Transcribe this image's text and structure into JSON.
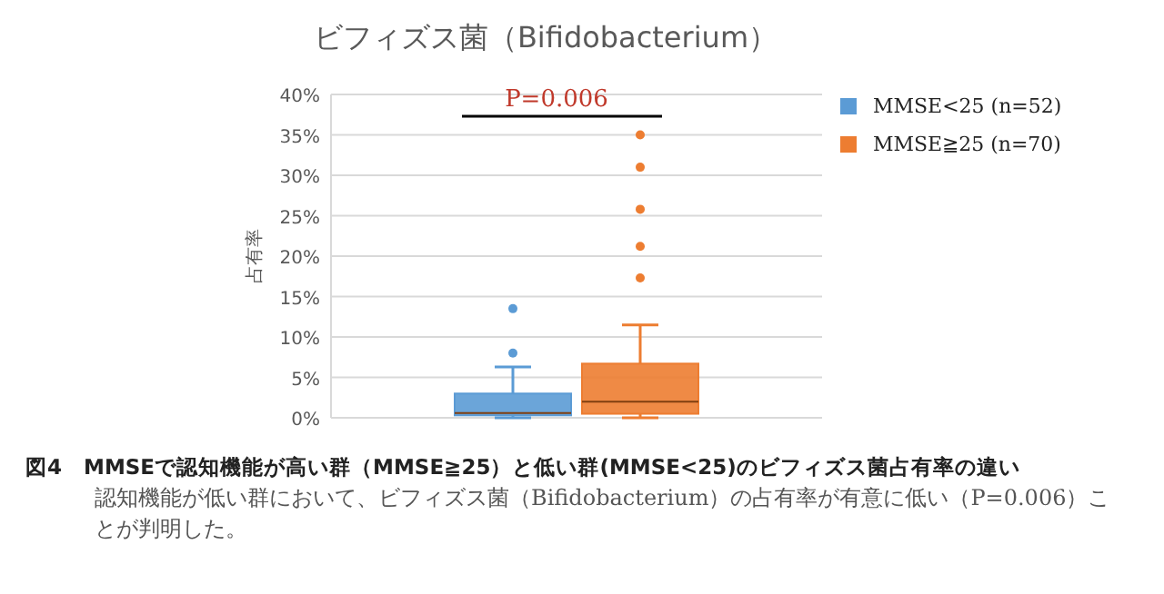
{
  "chart_data": {
    "type": "box",
    "title": "ビフィズス菌（Bifidobacterium）",
    "ylabel": "占有率",
    "categories": [
      null
    ],
    "series": [
      {
        "name": "MMSE<25 (n=52)",
        "color": "#5b9bd5",
        "boxes": [
          {
            "low": 0,
            "q1": 0.3,
            "median": 0.6,
            "q3": 3.0,
            "high": 6.3,
            "outliers": [
              8.0,
              13.5
            ]
          }
        ]
      },
      {
        "name": "MMSE≧25 (n=70)",
        "color": "#ed7d31",
        "boxes": [
          {
            "low": 0,
            "q1": 0.5,
            "median": 2.0,
            "q3": 6.7,
            "high": 11.5,
            "outliers": [
              17.3,
              21.2,
              25.8,
              31.0,
              35.0
            ]
          }
        ]
      }
    ],
    "ylim": [
      0,
      40
    ],
    "yticks": [
      {
        "value": 0,
        "label": "0%"
      },
      {
        "value": 5,
        "label": "5%"
      },
      {
        "value": 10,
        "label": "10%"
      },
      {
        "value": 15,
        "label": "15%"
      },
      {
        "value": 20,
        "label": "20%"
      },
      {
        "value": 25,
        "label": "25%"
      },
      {
        "value": 30,
        "label": "30%"
      },
      {
        "value": 35,
        "label": "35%"
      },
      {
        "value": 40,
        "label": "40%"
      }
    ],
    "grid": "y",
    "legend": "right",
    "annotations": [
      "P=0.006",
      "図4　MMSEで認知機能が高い群（MMSE≧25）と低い群(MMSE<25)のビフィズス菌占有率の違い",
      "認知機能が低い群において、ビフィズス菌（Bifidobacterium）の占有率が有意に低い（P=0.006）ことが判明した。"
    ]
  }
}
